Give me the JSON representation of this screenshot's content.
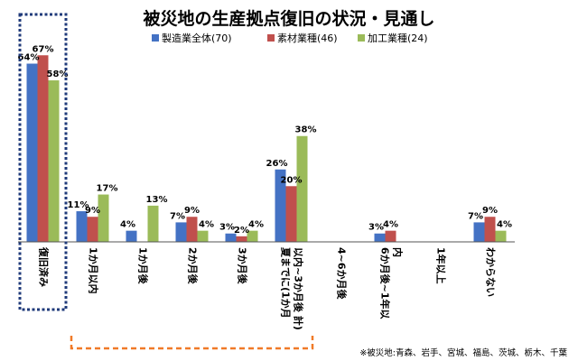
{
  "chart_data": {
    "type": "bar",
    "title": "被災地の生産拠点復旧の状況・見通し",
    "categories": [
      "復旧済み",
      "1か月以内",
      "1か月後",
      "2か月後",
      "3か月後",
      "夏までに(1か月以内~3か月後 計)",
      "4~6か月後",
      "6か月後~1年以内",
      "1年以上",
      "わからない"
    ],
    "series": [
      {
        "name": "製造業全体(70)",
        "color": "#4472c4",
        "values": [
          64,
          11,
          4,
          7,
          3,
          26,
          null,
          3,
          null,
          7
        ]
      },
      {
        "name": "素材業種(46)",
        "color": "#c0504d",
        "values": [
          67,
          9,
          null,
          9,
          2,
          20,
          null,
          4,
          null,
          9
        ]
      },
      {
        "name": "加工業種(24)",
        "color": "#9bbb59",
        "values": [
          58,
          17,
          13,
          4,
          4,
          38,
          null,
          null,
          null,
          4
        ]
      }
    ],
    "ylim": [
      0,
      70
    ],
    "value_suffix": "%",
    "legend_position": "top",
    "grid": false,
    "footnote": "※被災地:青森、岩手、宮城、福島、茨城、栃木、千葉"
  },
  "colors": {
    "highlight_box": "#1f3a7a",
    "bracket": "#f07a28",
    "axis": "#555555",
    "text": "#000000"
  }
}
